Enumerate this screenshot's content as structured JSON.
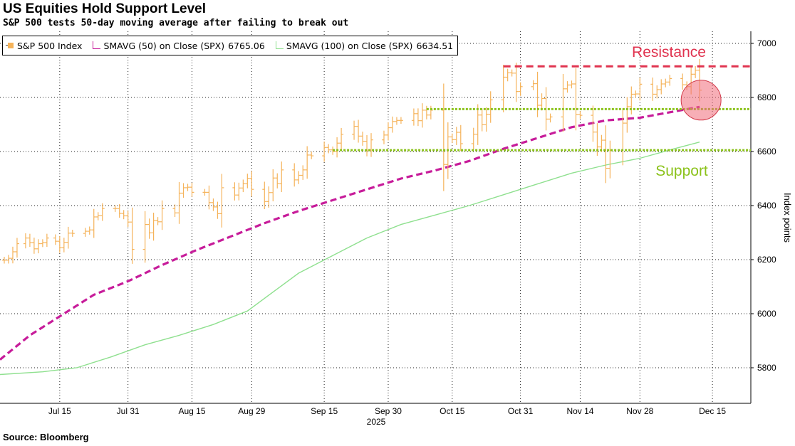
{
  "header": {
    "title": "US Equities Hold Support Level",
    "subtitle": "S&P 500 tests 50-day moving average after failing to break out"
  },
  "footer": {
    "source": "Source: Bloomberg"
  },
  "legend": [
    {
      "label": "S&P 500 Index",
      "value": "",
      "color": "#f5b35a"
    },
    {
      "label": "SMAVG (50)  on Close (SPX)",
      "value": "6765.06",
      "color": "#c71c9a"
    },
    {
      "label": "SMAVG (100)  on Close (SPX)",
      "value": "6634.51",
      "color": "#8fe08f"
    }
  ],
  "annotations": {
    "resistance": "Resistance",
    "support": "Support",
    "resistance_color": "#e0334f",
    "support_color": "#8bc21a"
  },
  "chart_data": {
    "type": "line",
    "xlabel": "2025",
    "ylabel": "Index points",
    "ylim": [
      5700,
      7040
    ],
    "yticks": [
      5800,
      6000,
      6200,
      6400,
      6600,
      6800,
      7000
    ],
    "xticks": [
      "Jul 15",
      "Jul 31",
      "Aug 15",
      "Aug 29",
      "Sep 15",
      "Sep 30",
      "Oct 15",
      "Oct 31",
      "Nov 14",
      "Nov 28",
      "Dec 15"
    ],
    "x_day_range": [
      0,
      164
    ],
    "xtick_days": [
      14,
      30,
      45,
      59,
      76,
      91,
      106,
      122,
      136,
      150,
      167
    ],
    "grid": true,
    "series": [
      {
        "name": "S&P 500 Index",
        "style": "ohlc-bars",
        "color": "#f5b35a",
        "points": [
          [
            1,
            6198
          ],
          [
            2,
            6205
          ],
          [
            3,
            6229
          ],
          [
            4,
            6259
          ],
          [
            6,
            6280
          ],
          [
            7,
            6263
          ],
          [
            8,
            6240
          ],
          [
            9,
            6259
          ],
          [
            10,
            6263
          ],
          [
            11,
            6280
          ],
          [
            13,
            6268
          ],
          [
            14,
            6244
          ],
          [
            15,
            6264
          ],
          [
            16,
            6298
          ],
          [
            17,
            6297
          ],
          [
            20,
            6305
          ],
          [
            21,
            6310
          ],
          [
            22,
            6358
          ],
          [
            23,
            6363
          ],
          [
            24,
            6389
          ],
          [
            27,
            6389
          ],
          [
            28,
            6371
          ],
          [
            29,
            6362
          ],
          [
            30,
            6339
          ],
          [
            31,
            6238
          ],
          [
            34,
            6330
          ],
          [
            35,
            6299
          ],
          [
            36,
            6345
          ],
          [
            37,
            6340
          ],
          [
            38,
            6389
          ],
          [
            41,
            6373
          ],
          [
            42,
            6446
          ],
          [
            43,
            6466
          ],
          [
            44,
            6468
          ],
          [
            45,
            6449
          ],
          [
            48,
            6449
          ],
          [
            49,
            6411
          ],
          [
            50,
            6395
          ],
          [
            51,
            6370
          ],
          [
            52,
            6466
          ],
          [
            55,
            6439
          ],
          [
            56,
            6465
          ],
          [
            57,
            6481
          ],
          [
            58,
            6501
          ],
          [
            59,
            6460
          ],
          [
            62,
            6415
          ],
          [
            63,
            6448
          ],
          [
            64,
            6502
          ],
          [
            65,
            6481
          ],
          [
            66,
            6532
          ],
          [
            69,
            6495
          ],
          [
            70,
            6512
          ],
          [
            71,
            6532
          ],
          [
            72,
            6587
          ],
          [
            73,
            6584
          ],
          [
            76,
            6615
          ],
          [
            77,
            6606
          ],
          [
            78,
            6600
          ],
          [
            79,
            6631
          ],
          [
            80,
            6664
          ],
          [
            83,
            6693
          ],
          [
            84,
            6657
          ],
          [
            85,
            6638
          ],
          [
            86,
            6605
          ],
          [
            87,
            6643
          ],
          [
            90,
            6661
          ],
          [
            91,
            6688
          ],
          [
            92,
            6711
          ],
          [
            93,
            6715
          ],
          [
            94,
            6715
          ],
          [
            97,
            6740
          ],
          [
            98,
            6714
          ],
          [
            99,
            6753
          ],
          [
            100,
            6735
          ],
          [
            101,
            6753
          ],
          [
            104,
            6552
          ],
          [
            105,
            6654
          ],
          [
            106,
            6644
          ],
          [
            107,
            6671
          ],
          [
            108,
            6629
          ],
          [
            111,
            6664
          ],
          [
            112,
            6735
          ],
          [
            113,
            6699
          ],
          [
            114,
            6738
          ],
          [
            115,
            6791
          ],
          [
            118,
            6875
          ],
          [
            119,
            6891
          ],
          [
            120,
            6890
          ],
          [
            121,
            6822
          ],
          [
            122,
            6840
          ],
          [
            125,
            6851
          ],
          [
            126,
            6771
          ],
          [
            127,
            6796
          ],
          [
            128,
            6720
          ],
          [
            129,
            6728
          ],
          [
            132,
            6832
          ],
          [
            133,
            6846
          ],
          [
            134,
            6850
          ],
          [
            135,
            6737
          ],
          [
            136,
            6734
          ],
          [
            139,
            6672
          ],
          [
            140,
            6617
          ],
          [
            141,
            6642
          ],
          [
            142,
            6538
          ],
          [
            143,
            6603
          ],
          [
            146,
            6705
          ],
          [
            147,
            6766
          ],
          [
            148,
            6812
          ],
          [
            149,
            6813
          ],
          [
            150,
            6849
          ],
          [
            153,
            6812
          ],
          [
            154,
            6829
          ],
          [
            155,
            6850
          ],
          [
            156,
            6857
          ],
          [
            157,
            6870
          ],
          [
            160,
            6847
          ],
          [
            161,
            6840
          ],
          [
            162,
            6886
          ],
          [
            163,
            6901
          ],
          [
            164,
            6827
          ]
        ]
      },
      {
        "name": "SMAVG (50)  on Close (SPX)",
        "style": "dashed",
        "color": "#c71c9a",
        "points": [
          [
            0,
            5830
          ],
          [
            7,
            5920
          ],
          [
            14,
            5990
          ],
          [
            22,
            6070
          ],
          [
            30,
            6120
          ],
          [
            38,
            6180
          ],
          [
            46,
            6235
          ],
          [
            54,
            6285
          ],
          [
            62,
            6335
          ],
          [
            70,
            6380
          ],
          [
            78,
            6420
          ],
          [
            86,
            6460
          ],
          [
            94,
            6500
          ],
          [
            102,
            6530
          ],
          [
            110,
            6565
          ],
          [
            118,
            6610
          ],
          [
            126,
            6650
          ],
          [
            134,
            6690
          ],
          [
            142,
            6715
          ],
          [
            150,
            6725
          ],
          [
            158,
            6748
          ],
          [
            164,
            6765
          ]
        ]
      },
      {
        "name": "SMAVG (100)  on Close (SPX)",
        "style": "solid",
        "color": "#8fe08f",
        "points": [
          [
            0,
            5775
          ],
          [
            10,
            5785
          ],
          [
            18,
            5800
          ],
          [
            26,
            5840
          ],
          [
            34,
            5885
          ],
          [
            42,
            5920
          ],
          [
            50,
            5960
          ],
          [
            58,
            6010
          ],
          [
            64,
            6080
          ],
          [
            70,
            6150
          ],
          [
            78,
            6215
          ],
          [
            86,
            6280
          ],
          [
            94,
            6330
          ],
          [
            102,
            6365
          ],
          [
            110,
            6400
          ],
          [
            118,
            6440
          ],
          [
            126,
            6480
          ],
          [
            134,
            6520
          ],
          [
            142,
            6550
          ],
          [
            150,
            6575
          ],
          [
            158,
            6610
          ],
          [
            164,
            6635
          ]
        ]
      }
    ],
    "reference_lines": [
      {
        "label": "Resistance",
        "y": 6915,
        "color": "#e0334f",
        "style": "dashed"
      },
      {
        "label": "Support",
        "y": 6757,
        "color": "#8bc21a",
        "style": "dotted"
      },
      {
        "label": "Support",
        "y": 6605,
        "color": "#8bc21a",
        "style": "dotted"
      }
    ],
    "highlight": {
      "x": 164,
      "y": 6790,
      "color": "#f06c7a"
    }
  }
}
